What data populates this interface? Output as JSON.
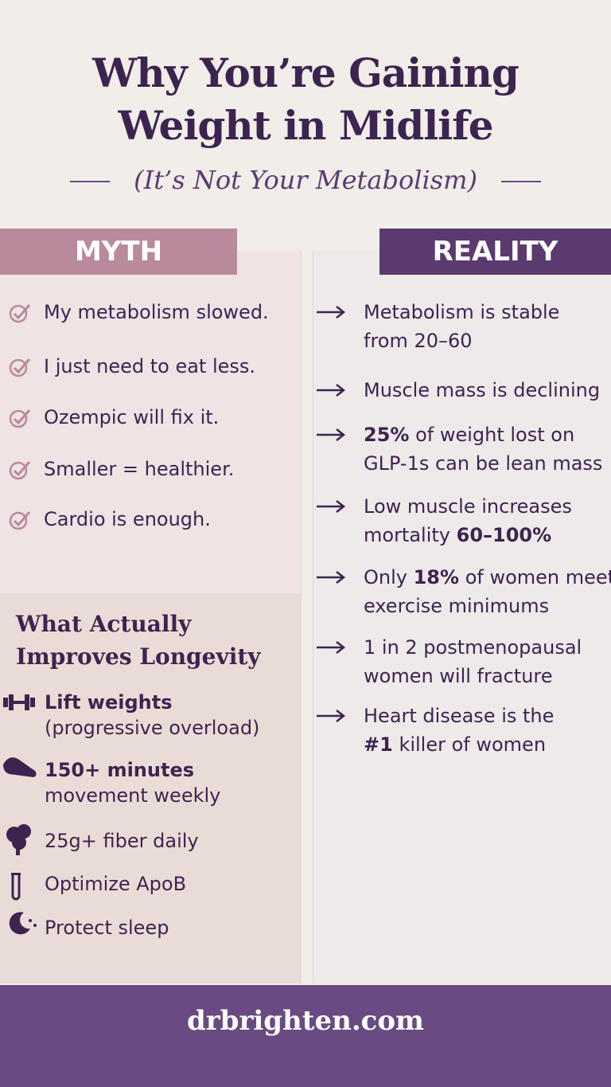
{
  "header": {
    "title_lines": [
      "Why You’re Gaining",
      "Weight in Midlife"
    ],
    "subtitle": "(It’s Not Your Metabolism)"
  },
  "myth": {
    "label": "MYTH",
    "items": [
      "My metabolism slowed.",
      "I just need to eat less.",
      "Ozempic will fix it.",
      "Smaller = healthier.",
      "Cardio is enough."
    ]
  },
  "reality": {
    "label": "REALITY",
    "items": [
      {
        "lines": [
          [
            {
              "text": "Metabolism is stable"
            }
          ],
          [
            {
              "text": "from 20–60"
            }
          ]
        ]
      },
      {
        "lines": [
          [
            {
              "text": "Muscle mass is declining"
            }
          ]
        ]
      },
      {
        "lines": [
          [
            {
              "text": "25%",
              "bold": true
            },
            {
              "text": " of weight lost on"
            }
          ],
          [
            {
              "text": "GLP-1s can be lean mass"
            }
          ]
        ]
      },
      {
        "lines": [
          [
            {
              "text": "Low muscle increases"
            }
          ],
          [
            {
              "text": "mortality "
            },
            {
              "text": "60–100%",
              "bold": true
            }
          ]
        ]
      },
      {
        "lines": [
          [
            {
              "text": "Only "
            },
            {
              "text": "18%",
              "bold": true
            },
            {
              "text": " of women meet"
            }
          ],
          [
            {
              "text": "exercise minimums"
            }
          ]
        ]
      },
      {
        "lines": [
          [
            {
              "text": "1 in 2 postmenopausal"
            }
          ],
          [
            {
              "text": "women will fracture"
            }
          ]
        ]
      },
      {
        "lines": [
          [
            {
              "text": "Heart disease is the"
            }
          ],
          [
            {
              "text": "#1",
              "bold": true
            },
            {
              "text": " killer of women"
            }
          ]
        ]
      }
    ]
  },
  "longevity": {
    "title_lines": [
      "What Actually",
      "Improves Longevity"
    ],
    "items": [
      {
        "lines": [
          [
            {
              "text": "Lift weights",
              "bold": true
            }
          ],
          [
            {
              "text": "(progressive overload)"
            }
          ]
        ]
      },
      {
        "lines": [
          [
            {
              "text": "150+ minutes",
              "bold": true
            }
          ],
          [
            {
              "text": "movement weekly"
            }
          ]
        ]
      },
      {
        "lines": [
          [
            {
              "text": "25g+ fiber daily"
            }
          ]
        ]
      },
      {
        "lines": [
          [
            {
              "text": "Optimize ApoB"
            }
          ]
        ]
      },
      {
        "lines": [
          [
            {
              "text": "Protect sleep"
            }
          ]
        ]
      }
    ]
  },
  "footer": {
    "url": "drbrighten.com"
  }
}
